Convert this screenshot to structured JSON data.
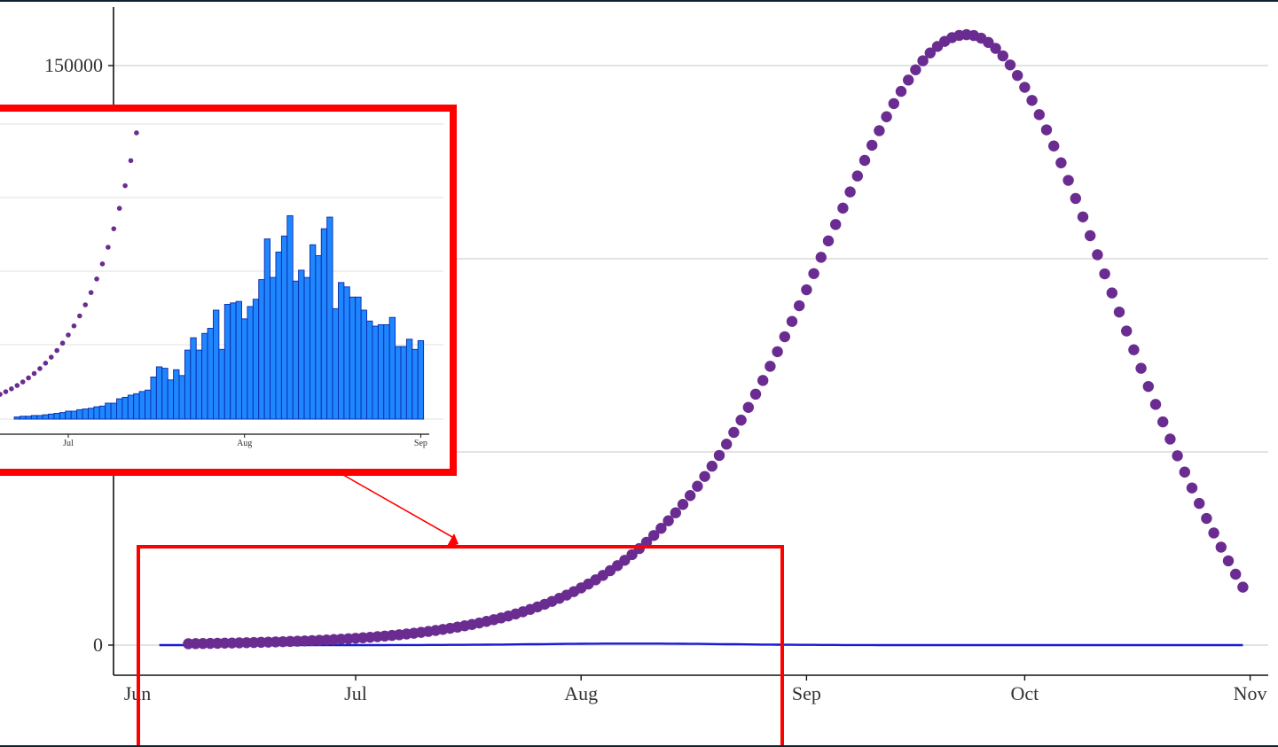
{
  "chart_data": [
    {
      "type": "scatter",
      "title": "",
      "xlabel": "",
      "ylabel": "",
      "x_tick_labels": [
        "Jun",
        "Jul",
        "Aug",
        "Sep",
        "Oct",
        "Nov"
      ],
      "y_tick_labels": [
        "0",
        "150000"
      ],
      "ylim": [
        -8000,
        165000
      ],
      "grid": "horizontal",
      "legend": "none",
      "series": [
        {
          "kind": "points",
          "color": "#6a2c91",
          "shape": "dot",
          "x_start": "2020-06-08",
          "x_end": "2020-10-31",
          "peak_date": "2020-09-23",
          "peak_value": 158000,
          "end_value": 15000
        },
        {
          "kind": "line",
          "color": "#1a1ad6",
          "x_start": "2020-06-04",
          "x_end": "2020-10-31",
          "max_value": 400
        }
      ],
      "annotations": [
        {
          "kind": "highlight-box",
          "color": "#ff0000",
          "x_from": "2020-06-01",
          "x_to": "2020-08-31"
        },
        {
          "kind": "arrow",
          "color": "#ff0000",
          "from": "inset",
          "to": "highlight-box"
        }
      ]
    },
    {
      "type": "bar",
      "title": "",
      "inset": true,
      "x_tick_labels": [
        "Jul",
        "Aug",
        "Sep"
      ],
      "grid": "horizontal",
      "bar_color": "#1e86ff",
      "bar_edge_color": "#0a2aa8",
      "point_color": "#6a2c91",
      "x_start": "2020-06-22",
      "x_end": "2020-08-31",
      "bar_values": [
        3,
        4,
        4,
        5,
        5,
        6,
        7,
        8,
        9,
        11,
        11,
        13,
        14,
        15,
        17,
        18,
        22,
        22,
        28,
        30,
        33,
        35,
        38,
        40,
        58,
        72,
        70,
        54,
        68,
        60,
        95,
        112,
        95,
        118,
        125,
        150,
        96,
        158,
        160,
        162,
        138,
        155,
        165,
        192,
        248,
        195,
        230,
        252,
        280,
        190,
        205,
        195,
        240,
        225,
        262,
        278,
        152,
        188,
        182,
        168,
        168,
        150,
        135,
        128,
        130,
        130,
        140,
        100,
        100,
        110,
        96,
        108
      ]
    }
  ]
}
